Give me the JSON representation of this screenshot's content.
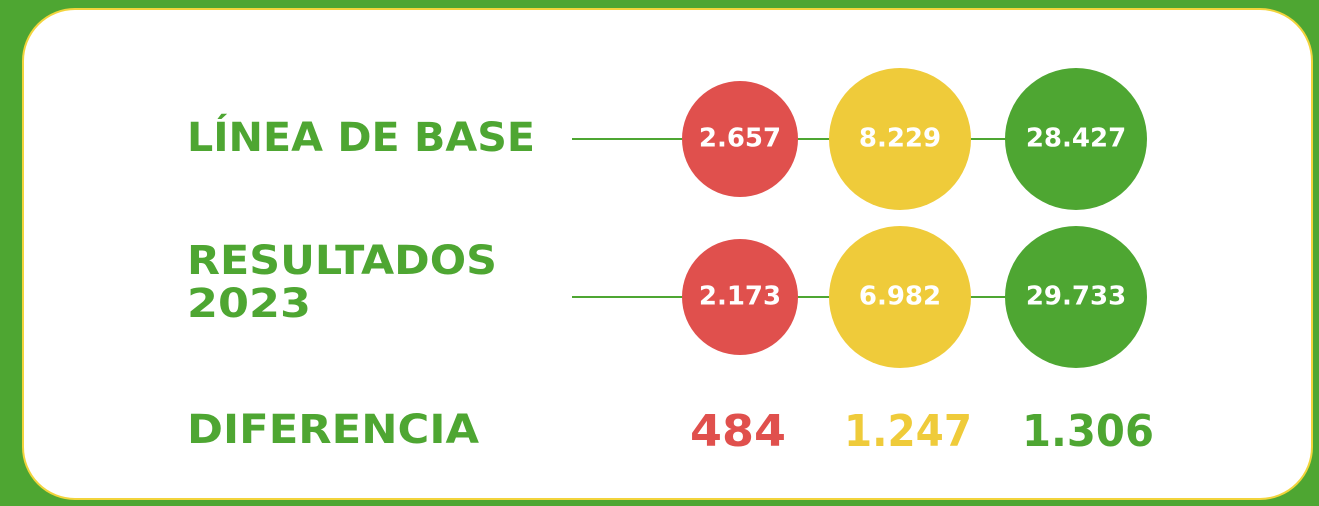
{
  "rows": [
    {
      "label": [
        "LÍNEA DE BASE"
      ],
      "values": [
        "2.657",
        "8.229",
        "28.427"
      ]
    },
    {
      "label": [
        "RESULTADOS",
        "2023"
      ],
      "values": [
        "2.173",
        "6.982",
        "29.733"
      ]
    }
  ],
  "difference": {
    "label": "DIFERENCIA",
    "values": [
      "484",
      "1.247",
      "1.306"
    ]
  }
}
